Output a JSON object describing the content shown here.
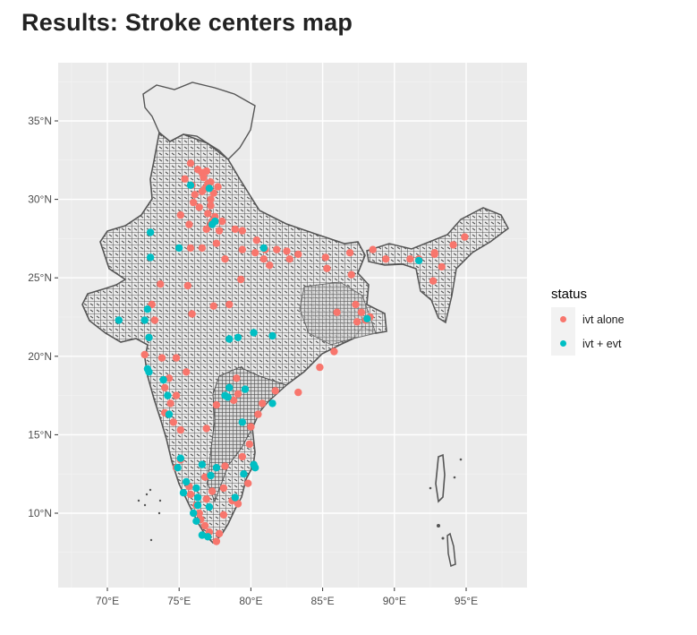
{
  "page": {
    "title": "Results: Stroke centers map"
  },
  "chart_data": {
    "type": "scatter",
    "title": "Results: Stroke centers map",
    "xlabel": "",
    "ylabel": "",
    "x_ticks": [
      "70°E",
      "75°E",
      "80°E",
      "85°E",
      "90°E",
      "95°E"
    ],
    "x_tick_values": [
      70,
      75,
      80,
      85,
      90,
      95
    ],
    "y_ticks": [
      "10°N",
      "15°N",
      "20°N",
      "25°N",
      "30°N",
      "35°N"
    ],
    "y_tick_values": [
      10,
      15,
      20,
      25,
      30,
      35
    ],
    "xlim": [
      66.7,
      98.6
    ],
    "ylim": [
      5.3,
      38.7
    ],
    "grid": true,
    "background": "#ebebeb",
    "legend": {
      "title": "status",
      "position": "right",
      "entries": [
        {
          "label": "ivt alone",
          "color": "#f8766d"
        },
        {
          "label": "ivt + evt",
          "color": "#00bfc4"
        }
      ]
    },
    "series": [
      {
        "name": "ivt alone",
        "color": "#f8766d",
        "points": [
          [
            75.8,
            32.3
          ],
          [
            76.3,
            31.9
          ],
          [
            76.6,
            31.7
          ],
          [
            76.9,
            31.8
          ],
          [
            77.2,
            31.1
          ],
          [
            76.7,
            31.4
          ],
          [
            77.0,
            31.0
          ],
          [
            75.4,
            31.3
          ],
          [
            75.9,
            30.9
          ],
          [
            76.8,
            30.7
          ],
          [
            77.4,
            30.4
          ],
          [
            76.1,
            30.3
          ],
          [
            76.6,
            30.5
          ],
          [
            77.7,
            30.8
          ],
          [
            77.2,
            30.0
          ],
          [
            76.0,
            29.8
          ],
          [
            76.4,
            29.5
          ],
          [
            77.2,
            29.6
          ],
          [
            77.5,
            28.9
          ],
          [
            77.0,
            29.1
          ],
          [
            77.3,
            28.6
          ],
          [
            77.2,
            28.4
          ],
          [
            76.9,
            28.1
          ],
          [
            77.8,
            28.0
          ],
          [
            75.1,
            29.0
          ],
          [
            75.7,
            28.4
          ],
          [
            78.0,
            28.6
          ],
          [
            78.9,
            28.1
          ],
          [
            79.4,
            28.0
          ],
          [
            80.4,
            27.4
          ],
          [
            79.4,
            26.8
          ],
          [
            80.3,
            26.6
          ],
          [
            81.0,
            26.8
          ],
          [
            81.8,
            26.8
          ],
          [
            82.5,
            26.7
          ],
          [
            83.3,
            26.5
          ],
          [
            82.7,
            26.2
          ],
          [
            81.3,
            25.8
          ],
          [
            80.9,
            26.2
          ],
          [
            77.6,
            27.2
          ],
          [
            76.6,
            26.9
          ],
          [
            75.8,
            26.9
          ],
          [
            78.2,
            26.2
          ],
          [
            79.3,
            24.9
          ],
          [
            75.6,
            24.5
          ],
          [
            73.7,
            24.6
          ],
          [
            78.5,
            23.3
          ],
          [
            77.4,
            23.2
          ],
          [
            75.9,
            22.7
          ],
          [
            73.1,
            23.3
          ],
          [
            73.3,
            22.3
          ],
          [
            72.9,
            21.2
          ],
          [
            72.6,
            20.1
          ],
          [
            73.8,
            19.9
          ],
          [
            74.8,
            19.9
          ],
          [
            75.5,
            19.0
          ],
          [
            74.3,
            18.6
          ],
          [
            74.0,
            18.0
          ],
          [
            74.4,
            17.0
          ],
          [
            74.8,
            17.5
          ],
          [
            74.0,
            16.4
          ],
          [
            74.6,
            15.8
          ],
          [
            75.1,
            15.3
          ],
          [
            76.9,
            15.4
          ],
          [
            77.6,
            16.9
          ],
          [
            78.8,
            17.2
          ],
          [
            79.1,
            17.6
          ],
          [
            79.0,
            18.6
          ],
          [
            80.8,
            17.0
          ],
          [
            81.7,
            17.8
          ],
          [
            83.3,
            17.7
          ],
          [
            80.5,
            16.3
          ],
          [
            80.0,
            15.5
          ],
          [
            79.9,
            14.4
          ],
          [
            79.4,
            13.6
          ],
          [
            78.2,
            13.0
          ],
          [
            76.8,
            12.3
          ],
          [
            77.6,
            12.9
          ],
          [
            75.1,
            13.4
          ],
          [
            74.8,
            12.9
          ],
          [
            75.7,
            11.7
          ],
          [
            75.8,
            11.2
          ],
          [
            76.2,
            10.5
          ],
          [
            76.4,
            10.0
          ],
          [
            76.5,
            9.6
          ],
          [
            76.8,
            9.2
          ],
          [
            77.1,
            8.8
          ],
          [
            77.6,
            8.2
          ],
          [
            76.9,
            10.9
          ],
          [
            77.3,
            11.4
          ],
          [
            78.1,
            11.6
          ],
          [
            78.7,
            10.8
          ],
          [
            79.1,
            10.6
          ],
          [
            78.1,
            9.9
          ],
          [
            77.8,
            8.7
          ],
          [
            80.2,
            13.1
          ],
          [
            79.8,
            11.9
          ],
          [
            84.8,
            19.3
          ],
          [
            85.8,
            20.3
          ],
          [
            86.0,
            22.8
          ],
          [
            87.3,
            23.3
          ],
          [
            87.4,
            22.2
          ],
          [
            88.3,
            22.5
          ],
          [
            88.0,
            22.3
          ],
          [
            87.7,
            22.8
          ],
          [
            88.5,
            26.8
          ],
          [
            89.4,
            26.2
          ],
          [
            91.1,
            26.2
          ],
          [
            91.7,
            26.2
          ],
          [
            92.8,
            26.6
          ],
          [
            93.3,
            25.7
          ],
          [
            92.8,
            26.5
          ],
          [
            94.1,
            27.1
          ],
          [
            94.9,
            27.6
          ],
          [
            92.7,
            24.8
          ],
          [
            85.3,
            25.6
          ],
          [
            85.2,
            26.3
          ],
          [
            87.0,
            25.2
          ],
          [
            86.9,
            26.6
          ]
        ]
      },
      {
        "name": "ivt + evt",
        "color": "#00bfc4",
        "points": [
          [
            75.8,
            30.9
          ],
          [
            77.1,
            30.7
          ],
          [
            77.5,
            28.6
          ],
          [
            77.3,
            28.4
          ],
          [
            75.0,
            26.9
          ],
          [
            73.0,
            27.9
          ],
          [
            73.0,
            26.3
          ],
          [
            80.9,
            26.9
          ],
          [
            72.8,
            23.0
          ],
          [
            72.6,
            22.3
          ],
          [
            72.9,
            21.2
          ],
          [
            72.8,
            19.2
          ],
          [
            72.9,
            19.0
          ],
          [
            73.9,
            18.5
          ],
          [
            74.2,
            17.5
          ],
          [
            74.3,
            16.3
          ],
          [
            78.5,
            21.1
          ],
          [
            79.1,
            21.2
          ],
          [
            80.2,
            21.5
          ],
          [
            81.5,
            21.3
          ],
          [
            78.5,
            18.0
          ],
          [
            78.2,
            17.5
          ],
          [
            78.4,
            17.4
          ],
          [
            79.6,
            17.9
          ],
          [
            79.4,
            15.8
          ],
          [
            81.5,
            17.0
          ],
          [
            77.6,
            12.9
          ],
          [
            76.6,
            13.1
          ],
          [
            80.2,
            13.1
          ],
          [
            80.3,
            12.9
          ],
          [
            79.5,
            12.5
          ],
          [
            77.2,
            12.4
          ],
          [
            75.5,
            12.0
          ],
          [
            74.9,
            12.9
          ],
          [
            75.1,
            13.5
          ],
          [
            75.3,
            11.3
          ],
          [
            76.2,
            11.6
          ],
          [
            76.3,
            11.0
          ],
          [
            76.0,
            10.0
          ],
          [
            76.2,
            9.5
          ],
          [
            76.3,
            10.5
          ],
          [
            77.1,
            10.4
          ],
          [
            76.6,
            8.6
          ],
          [
            77.0,
            8.5
          ],
          [
            78.9,
            11.0
          ],
          [
            70.8,
            22.3
          ],
          [
            91.7,
            26.1
          ],
          [
            88.1,
            22.4
          ]
        ]
      }
    ]
  }
}
